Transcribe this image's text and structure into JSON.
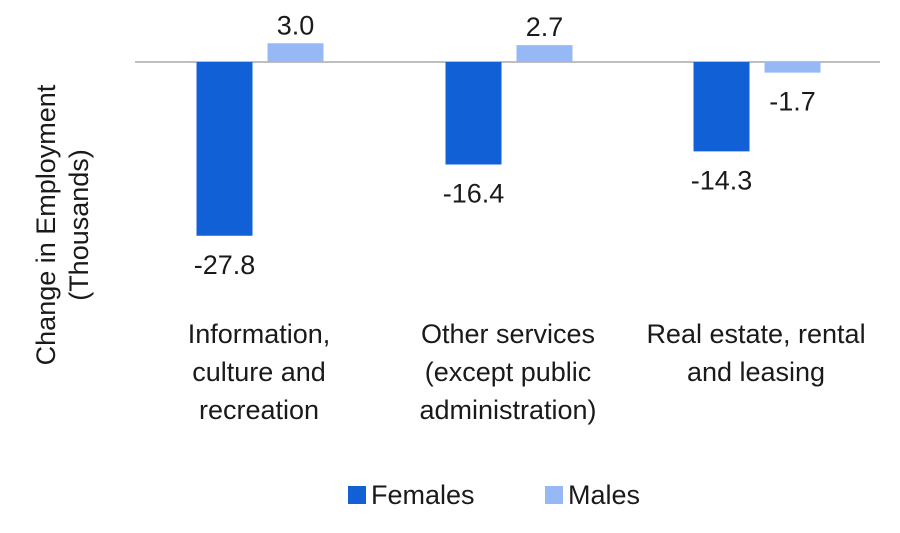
{
  "chart_data": {
    "type": "bar",
    "title": "",
    "xlabel": "",
    "ylabel": "Change in Employment (Thousands)",
    "ylabel_lines": [
      "Change in Employment",
      "(Thousands)"
    ],
    "categories": [
      "Information, culture and recreation",
      "Other services (except public administration)",
      "Real estate, rental and leasing"
    ],
    "category_lines": [
      [
        "Information,",
        "culture and",
        "recreation"
      ],
      [
        "Other services",
        "(except public",
        "administration)"
      ],
      [
        "Real estate, rental",
        "and leasing"
      ]
    ],
    "series": [
      {
        "name": "Females",
        "values": [
          -27.8,
          -16.4,
          -14.3
        ],
        "labels": [
          "-27.8",
          "-16.4",
          "-14.3"
        ],
        "color": "#1260d6"
      },
      {
        "name": "Males",
        "values": [
          3.0,
          2.7,
          -1.7
        ],
        "labels": [
          "3.0",
          "2.7",
          "-1.7"
        ],
        "color": "#96b9f5"
      }
    ],
    "ylim": [
      -27.8,
      3.0
    ],
    "grid": false,
    "legend_position": "bottom",
    "zero_line_color": "#bfbfbf"
  }
}
